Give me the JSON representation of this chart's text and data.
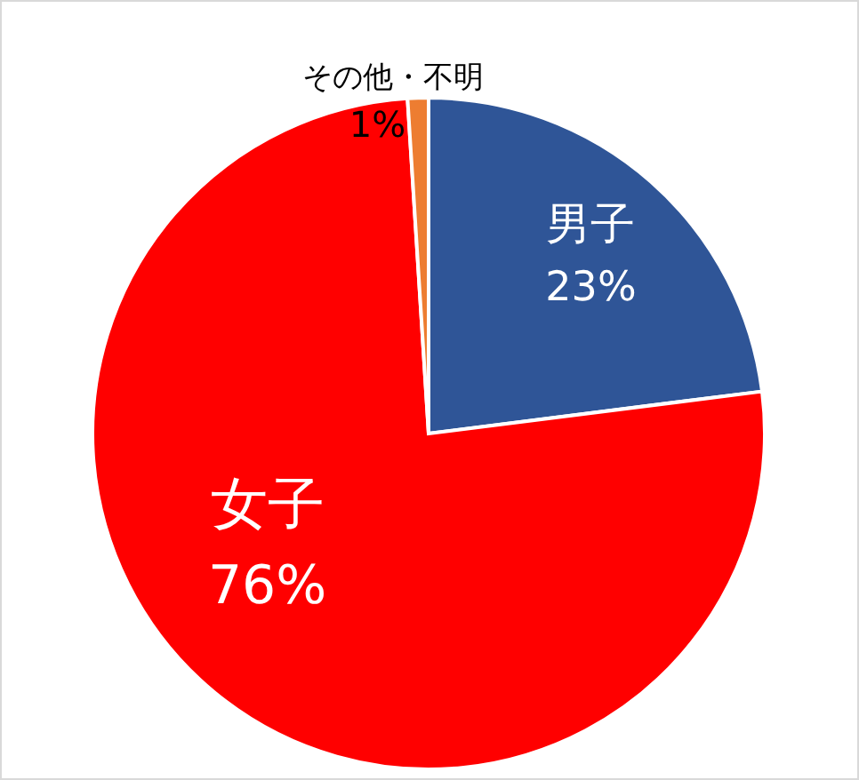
{
  "chart_data": {
    "type": "pie",
    "categories": [
      "男子",
      "女子",
      "その他・不明"
    ],
    "values": [
      23,
      76,
      1
    ],
    "colors": [
      "#2f5597",
      "#ff0000",
      "#ed7d31"
    ],
    "value_labels": [
      "23%",
      "76%",
      "1%"
    ]
  }
}
